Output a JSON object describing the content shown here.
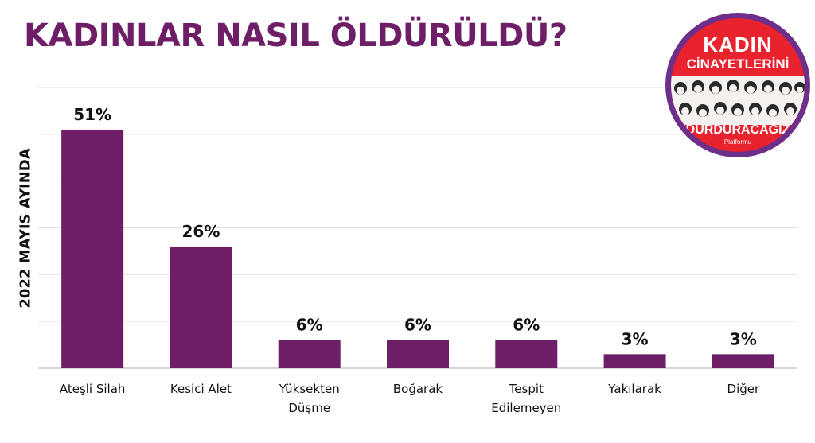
{
  "title": "KADINLAR NASIL ÖLDÜRÜLDÜ?",
  "y_caption": "2022 MAYIS AYINDA",
  "logo": {
    "line1": "KADIN",
    "line2": "CİNAYETLERİNİ",
    "line3": "DURDURACAĞIZ",
    "line4": "Platformu"
  },
  "colors": {
    "bar": "#6e1e67",
    "title": "#6e1e67",
    "grid": "#e3e3e3",
    "axis": "#c8c8c8",
    "text": "#111111"
  },
  "chart_data": {
    "type": "bar",
    "categories": [
      "Ateşli Silah",
      "Kesici Alet",
      "Yüksekten Düşme",
      "Boğarak",
      "Tespit Edilemeyen",
      "Yakılarak",
      "Diğer"
    ],
    "category_lines": [
      [
        "Ateşli Silah"
      ],
      [
        "Kesici Alet"
      ],
      [
        "Yüksekten",
        "Düşme"
      ],
      [
        "Boğarak"
      ],
      [
        "Tespit",
        "Edilemeyen"
      ],
      [
        "Yakılarak"
      ],
      [
        "Diğer"
      ]
    ],
    "values": [
      51,
      26,
      6,
      6,
      6,
      3,
      3
    ],
    "value_suffix": "%",
    "title": "KADINLAR NASIL ÖLDÜRÜLDÜ?",
    "xlabel": "",
    "ylabel": "2022 MAYIS AYINDA",
    "ylim": [
      0,
      60
    ],
    "grid": true,
    "legend": "none"
  }
}
